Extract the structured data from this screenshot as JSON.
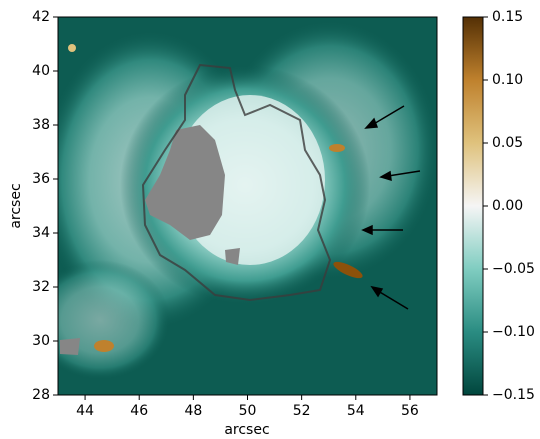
{
  "chart_data": {
    "type": "image",
    "xlabel": "arcsec",
    "ylabel": "arcsec",
    "xlim": [
      43,
      57
    ],
    "ylim": [
      28,
      42
    ],
    "xticks": [
      44,
      46,
      48,
      50,
      52,
      54,
      56
    ],
    "yticks": [
      28,
      30,
      32,
      34,
      36,
      38,
      40,
      42
    ],
    "clim": [
      -0.15,
      0.15
    ],
    "colorbar_colors": [
      "#01463d",
      "#2a8c82",
      "#80cdc1",
      "#f5f5f5",
      "#dfc27d",
      "#bf812d",
      "#543005"
    ],
    "cticks": [
      {
        "value": -0.15,
        "label": "−0.15"
      },
      {
        "value": -0.1,
        "label": "−0.10"
      },
      {
        "value": -0.05,
        "label": "−0.05"
      },
      {
        "value": 0,
        "label": "0.00"
      },
      {
        "value": 0.05,
        "label": "0.05"
      },
      {
        "value": 0.1,
        "label": "0.10"
      },
      {
        "value": 0.15,
        "label": "0.15"
      }
    ]
  }
}
